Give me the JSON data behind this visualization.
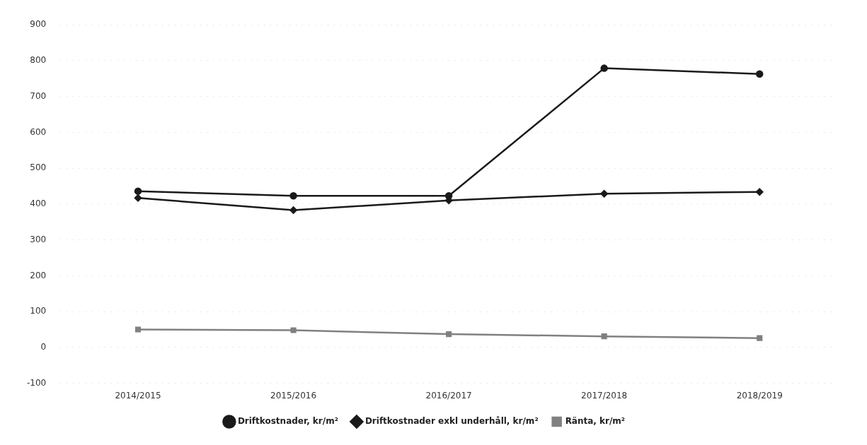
{
  "chart_data": {
    "type": "line",
    "categories": [
      "2014/2015",
      "2015/2016",
      "2016/2017",
      "2017/2018",
      "2018/2019"
    ],
    "series": [
      {
        "name": "Driftkostnader, kr/m²",
        "color": "#1a1a1a",
        "marker": "circle",
        "values": [
          436,
          423,
          423,
          779,
          763
        ]
      },
      {
        "name": "Driftkostnader exkl underhåll, kr/m²",
        "color": "#1a1a1a",
        "marker": "diamond",
        "values": [
          417,
          383,
          410,
          429,
          434
        ]
      },
      {
        "name": "Ränta, kr/m²",
        "color": "#808080",
        "marker": "square",
        "values": [
          50,
          48,
          37,
          31,
          26
        ]
      }
    ],
    "ylim": [
      -100,
      900
    ],
    "yticks": [
      -100,
      0,
      100,
      200,
      300,
      400,
      500,
      600,
      700,
      800,
      900
    ],
    "grid": "y",
    "legend": "bottom",
    "line_style": "solid"
  }
}
